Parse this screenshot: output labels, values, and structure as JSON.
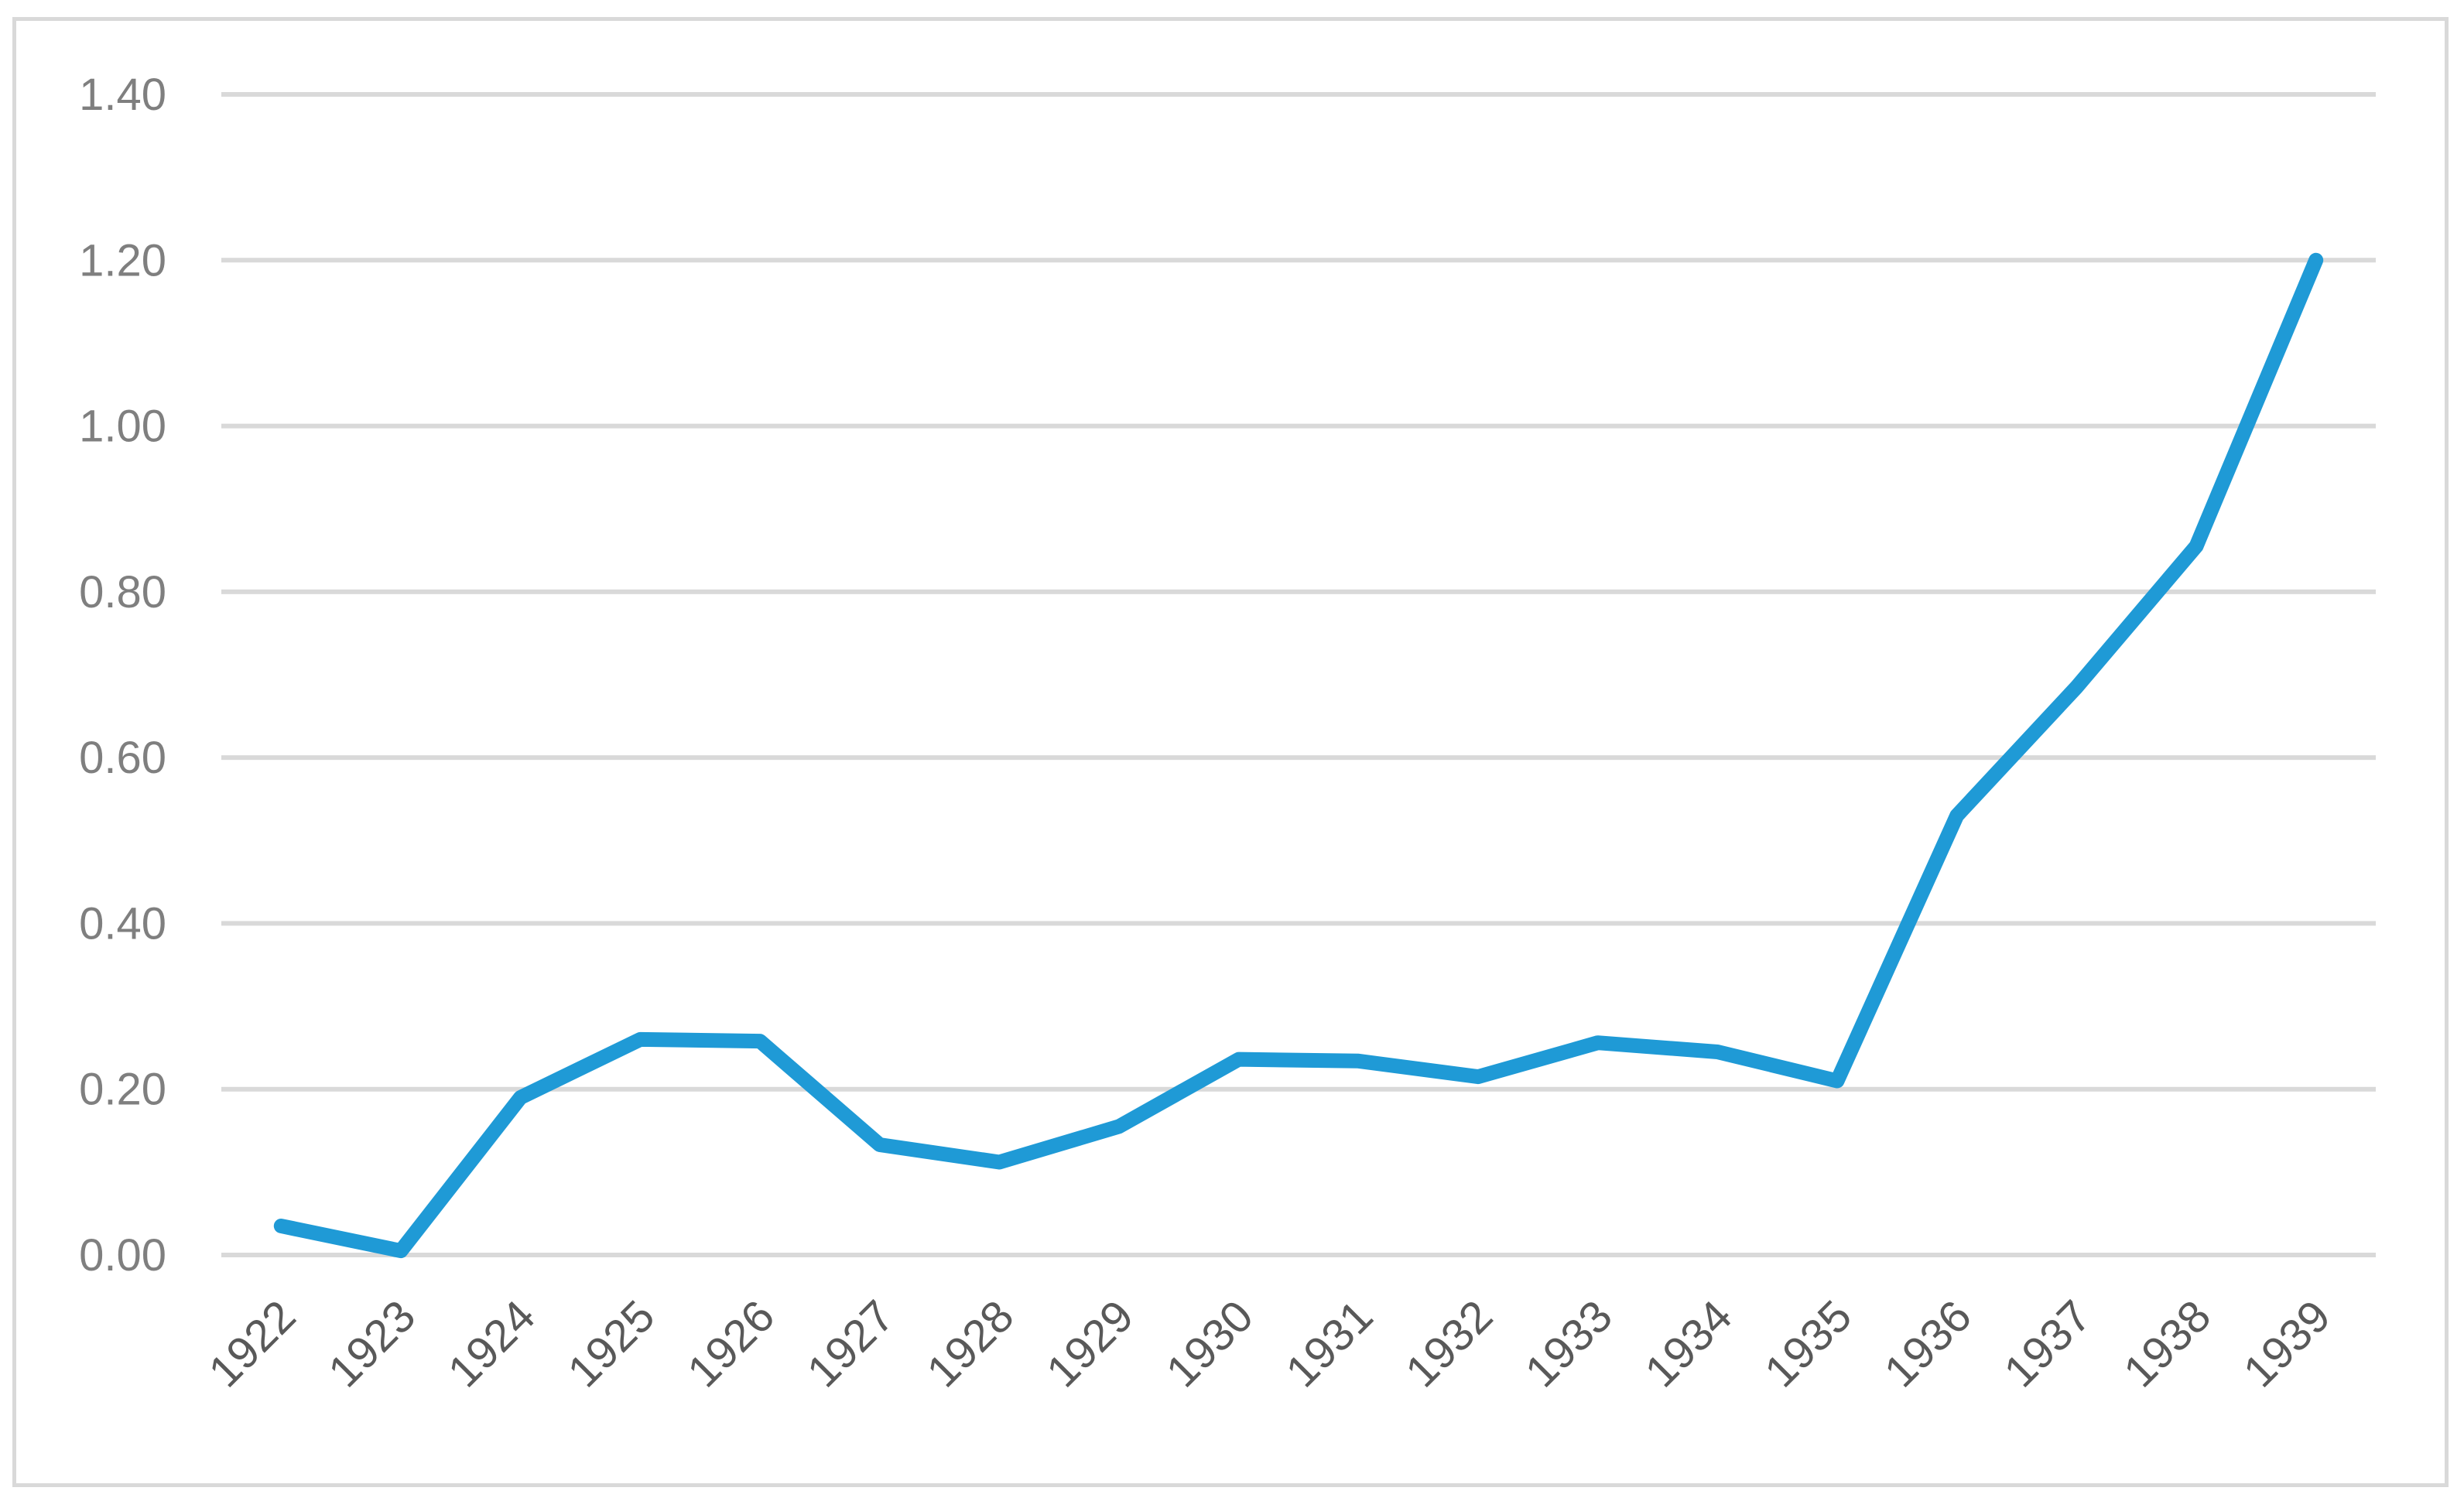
{
  "chart_data": {
    "type": "line",
    "title": "",
    "xlabel": "",
    "ylabel": "",
    "categories": [
      "1922",
      "1923",
      "1924",
      "1925",
      "1926",
      "1927",
      "1928",
      "1929",
      "1930",
      "1931",
      "1932",
      "1933",
      "1934",
      "1935",
      "1936",
      "1937",
      "1938",
      "1939"
    ],
    "y_tick_labels": [
      "0.00",
      "0.20",
      "0.40",
      "0.60",
      "0.80",
      "1.00",
      "1.20",
      "1.40"
    ],
    "ylim": [
      0,
      1.4
    ],
    "grid": true,
    "legend": "none",
    "series": [
      {
        "values": [
          0.035,
          0.005,
          0.19,
          0.26,
          0.258,
          0.133,
          0.112,
          0.155,
          0.236,
          0.234,
          0.215,
          0.256,
          0.245,
          0.21,
          0.53,
          0.685,
          0.855,
          1.2
        ],
        "color": "#1f9ad6"
      }
    ],
    "x_tick_rotation": -45
  }
}
